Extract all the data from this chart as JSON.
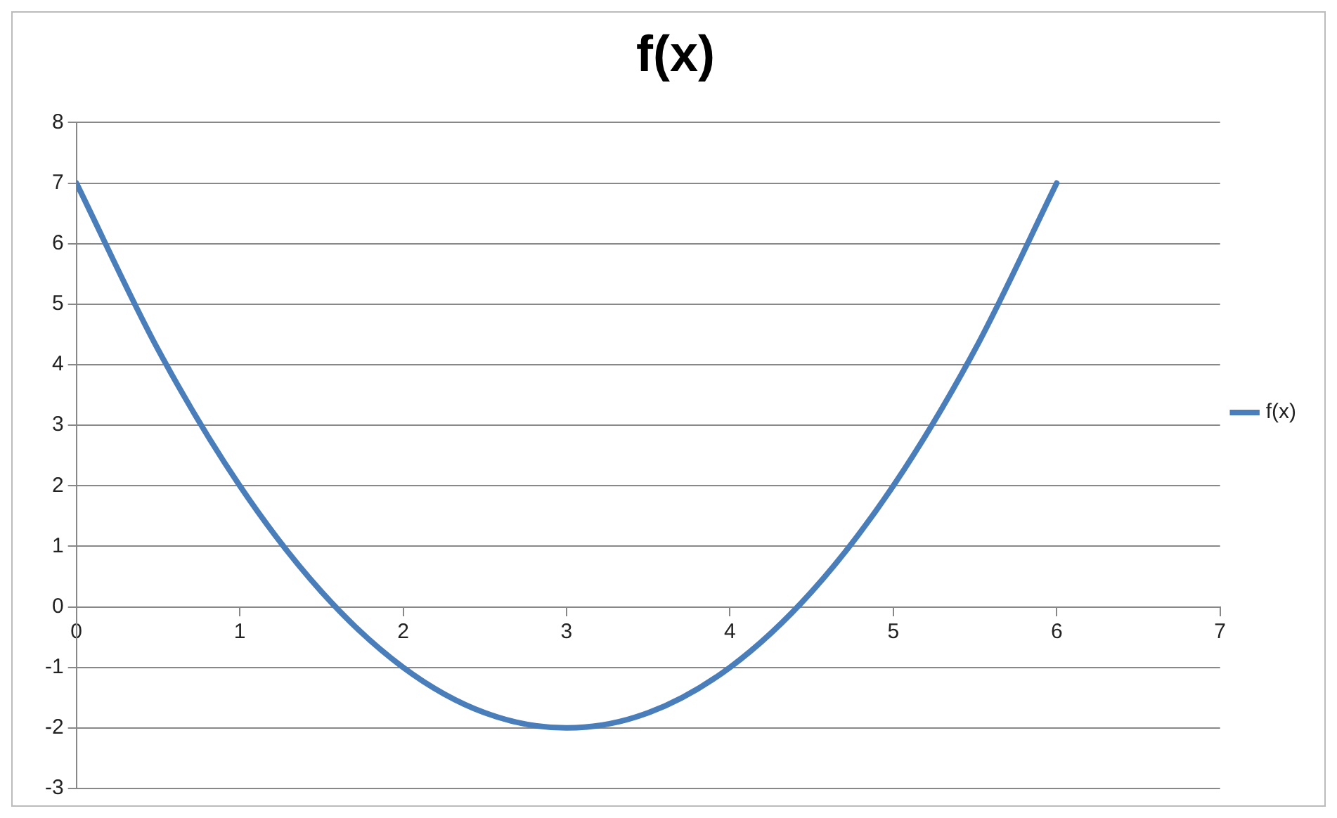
{
  "chart_data": {
    "type": "line",
    "title": "f(x)",
    "x": [
      0,
      0.5,
      1,
      1.5,
      2,
      2.5,
      3,
      3.5,
      4,
      4.5,
      5,
      5.5,
      6
    ],
    "series": [
      {
        "name": "f(x)",
        "color": "#4a7ebb",
        "values": [
          7,
          4.25,
          2,
          0.25,
          -1,
          -1.75,
          -2,
          -1.75,
          -1,
          0.25,
          2,
          4.25,
          7
        ]
      }
    ],
    "xlim": [
      0,
      7
    ],
    "xticks": [
      0,
      1,
      2,
      3,
      4,
      5,
      6,
      7
    ],
    "ylim": [
      -3,
      8
    ],
    "yticks": [
      -3,
      -2,
      -1,
      0,
      1,
      2,
      3,
      4,
      5,
      6,
      7,
      8
    ],
    "grid": "y",
    "legend": "right",
    "marker": "none",
    "line_style": "solid"
  }
}
